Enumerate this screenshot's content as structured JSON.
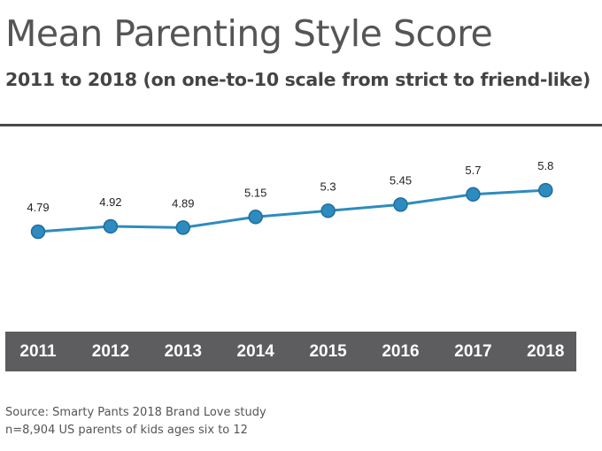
{
  "title": "Mean Parenting Style Score",
  "subtitle": "2011 to 2018 (on one-to-10 scale from strict to friend-like)",
  "source_lines": [
    "Source: Smarty Pants 2018 Brand Love study",
    "n=8,904 US parents of kids ages six to 12"
  ],
  "colors": {
    "line": "#2e8bbf",
    "marker_fill": "#2e8bbf",
    "marker_stroke": "#1f6f9c",
    "axis_band": "#5d5d5f"
  },
  "chart_data": {
    "type": "line",
    "title": "Mean Parenting Style Score",
    "subtitle": "2011 to 2018 (on one-to-10 scale from strict to friend-like)",
    "categories": [
      "2011",
      "2012",
      "2013",
      "2014",
      "2015",
      "2016",
      "2017",
      "2018"
    ],
    "values": [
      4.79,
      4.92,
      4.89,
      5.15,
      5.3,
      5.45,
      5.7,
      5.8
    ],
    "value_labels": [
      "4.79",
      "4.92",
      "4.89",
      "5.15",
      "5.3",
      "5.45",
      "5.7",
      "5.8"
    ],
    "xlabel": "",
    "ylabel": "",
    "grid": false,
    "legend": "none"
  }
}
